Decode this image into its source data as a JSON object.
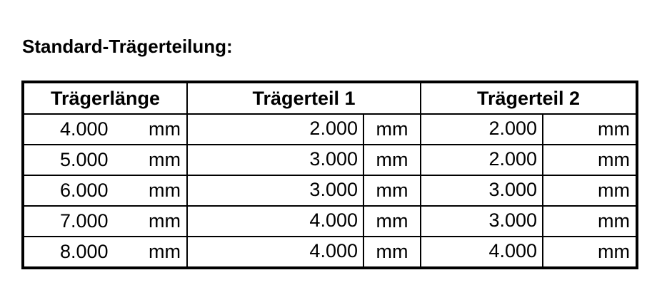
{
  "title": "Standard-Trägerteilung:",
  "headers": [
    "Trägerlänge",
    "Trägerteil 1",
    "Trägerteil 2"
  ],
  "unit": "mm",
  "rows": [
    {
      "length": "4.000",
      "part1": "2.000",
      "part2": "2.000"
    },
    {
      "length": "5.000",
      "part1": "3.000",
      "part2": "2.000"
    },
    {
      "length": "6.000",
      "part1": "3.000",
      "part2": "3.000"
    },
    {
      "length": "7.000",
      "part1": "4.000",
      "part2": "3.000"
    },
    {
      "length": "8.000",
      "part1": "4.000",
      "part2": "4.000"
    }
  ]
}
